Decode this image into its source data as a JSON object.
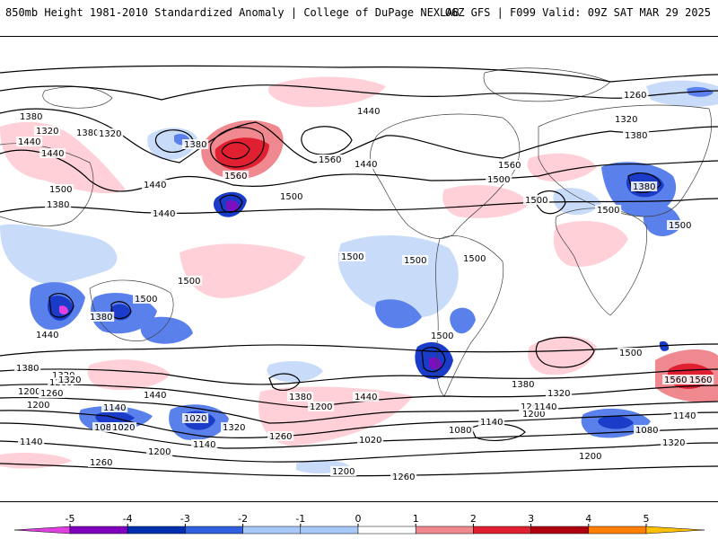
{
  "header": {
    "title": "850mb Height 1981-2010 Standardized Anomaly | College of DuPage NEXLAB",
    "run_info": "06Z GFS | F099 Valid: 09Z SAT MAR 29 2025"
  },
  "map": {
    "contour_labels": [
      "1320",
      "1380",
      "1440",
      "1500",
      "1560",
      "1260",
      "1200",
      "1140",
      "1080",
      "1020"
    ],
    "label_instances": [
      {
        "text": "1380"
      },
      {
        "text": "1320"
      },
      {
        "text": "1440"
      },
      {
        "text": "1380"
      },
      {
        "text": "1440"
      },
      {
        "text": "1320"
      },
      {
        "text": "1380"
      },
      {
        "text": "1440"
      },
      {
        "text": "1560"
      },
      {
        "text": "1500"
      },
      {
        "text": "1380"
      },
      {
        "text": "1440"
      },
      {
        "text": "1440"
      },
      {
        "text": "1500"
      },
      {
        "text": "1560"
      },
      {
        "text": "1260"
      },
      {
        "text": "1320"
      },
      {
        "text": "1380"
      },
      {
        "text": "1440"
      },
      {
        "text": "1560"
      },
      {
        "text": "1500"
      },
      {
        "text": "1380"
      },
      {
        "text": "1500"
      },
      {
        "text": "1500"
      },
      {
        "text": "1500"
      },
      {
        "text": "1500"
      },
      {
        "text": "1500"
      },
      {
        "text": "1500"
      },
      {
        "text": "1500"
      },
      {
        "text": "1500"
      },
      {
        "text": "1500"
      },
      {
        "text": "1380"
      },
      {
        "text": "1320"
      },
      {
        "text": "1260"
      },
      {
        "text": "1200"
      },
      {
        "text": "1440"
      },
      {
        "text": "1380"
      },
      {
        "text": "1440"
      },
      {
        "text": "1380"
      },
      {
        "text": "1320"
      },
      {
        "text": "1260"
      },
      {
        "text": "1200"
      },
      {
        "text": "1140"
      },
      {
        "text": "1080"
      },
      {
        "text": "1020"
      },
      {
        "text": "1320"
      },
      {
        "text": "1020"
      },
      {
        "text": "1140"
      },
      {
        "text": "1200"
      },
      {
        "text": "1260"
      },
      {
        "text": "1140"
      },
      {
        "text": "1080"
      },
      {
        "text": "1260"
      },
      {
        "text": "1200"
      },
      {
        "text": "1260"
      },
      {
        "text": "1560"
      },
      {
        "text": "1500"
      },
      {
        "text": "1380"
      },
      {
        "text": "1440"
      },
      {
        "text": "1320"
      },
      {
        "text": "1260"
      },
      {
        "text": "1200"
      },
      {
        "text": "1140"
      },
      {
        "text": "1020"
      },
      {
        "text": "1080"
      },
      {
        "text": "1140"
      },
      {
        "text": "1200"
      },
      {
        "text": "1320"
      },
      {
        "text": "1560"
      },
      {
        "text": "1140"
      },
      {
        "text": "1200"
      }
    ]
  },
  "colorbar": {
    "ticks": [
      "-5",
      "-4",
      "-3",
      "-2",
      "-1",
      "0",
      "1",
      "2",
      "3",
      "4",
      "5"
    ],
    "colors": [
      "#e040e0",
      "#8000c0",
      "#0030b0",
      "#3060e0",
      "#a8c8f8",
      "#d8e8ff",
      "#ffffff",
      "#ffd0d8",
      "#f08890",
      "#e02030",
      "#b00010",
      "#ff8000",
      "#ffc000"
    ]
  },
  "legend_colors": {
    "anomaly_pos_weak": "#ffd0d8",
    "anomaly_pos_mid": "#f08890",
    "anomaly_pos_strong": "#e02030",
    "anomaly_neg_weak": "#c8dcfa",
    "anomaly_neg_mid": "#5a80ec",
    "anomaly_neg_strong": "#1a3cc8",
    "anomaly_neg_extreme": "#7a10c0",
    "contour": "#000000",
    "coastline": "#404040"
  }
}
